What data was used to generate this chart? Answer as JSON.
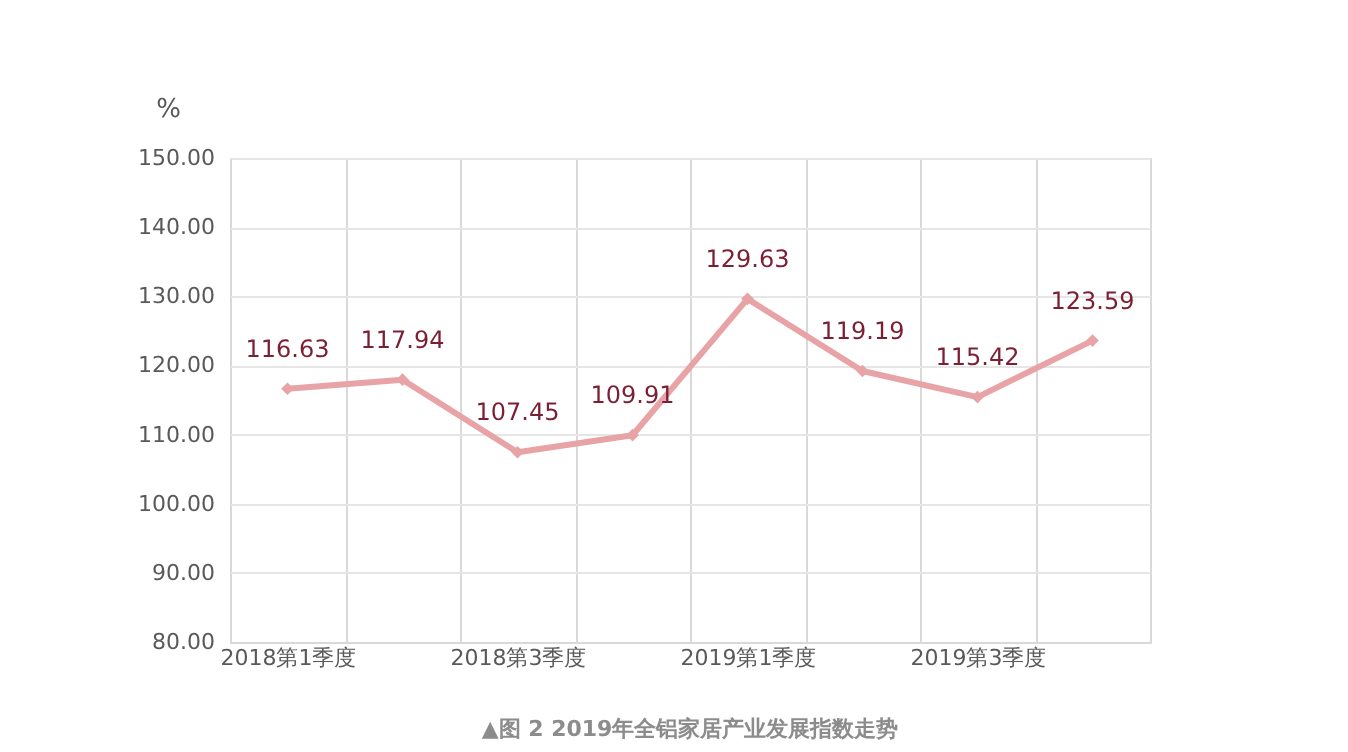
{
  "chart_data": {
    "type": "line",
    "categories": [
      "2018第1季度",
      null,
      "2018第3季度",
      null,
      "2019第1季度",
      null,
      "2019第3季度",
      null
    ],
    "series": [
      {
        "color": "#e8a3a6",
        "values": [
          116.63,
          117.94,
          107.45,
          109.91,
          129.63,
          119.19,
          115.42,
          123.59
        ]
      }
    ],
    "ylabel": "%",
    "ylim": [
      80,
      150
    ],
    "yticks": [
      {
        "value": 80,
        "label": "80.00"
      },
      {
        "value": 90,
        "label": "90.00"
      },
      {
        "value": 100,
        "label": "100.00"
      },
      {
        "value": 110,
        "label": "110.00"
      },
      {
        "value": 120,
        "label": "120.00"
      },
      {
        "value": 130,
        "label": "130.00"
      },
      {
        "value": 140,
        "label": "140.00"
      },
      {
        "value": 150,
        "label": "150.00"
      }
    ],
    "grid": true,
    "marker": "diamond",
    "data_labels": true,
    "line_style": "solid",
    "annotations": [
      "▲图 2 2019年全铝家居产业发展指数走势"
    ]
  }
}
